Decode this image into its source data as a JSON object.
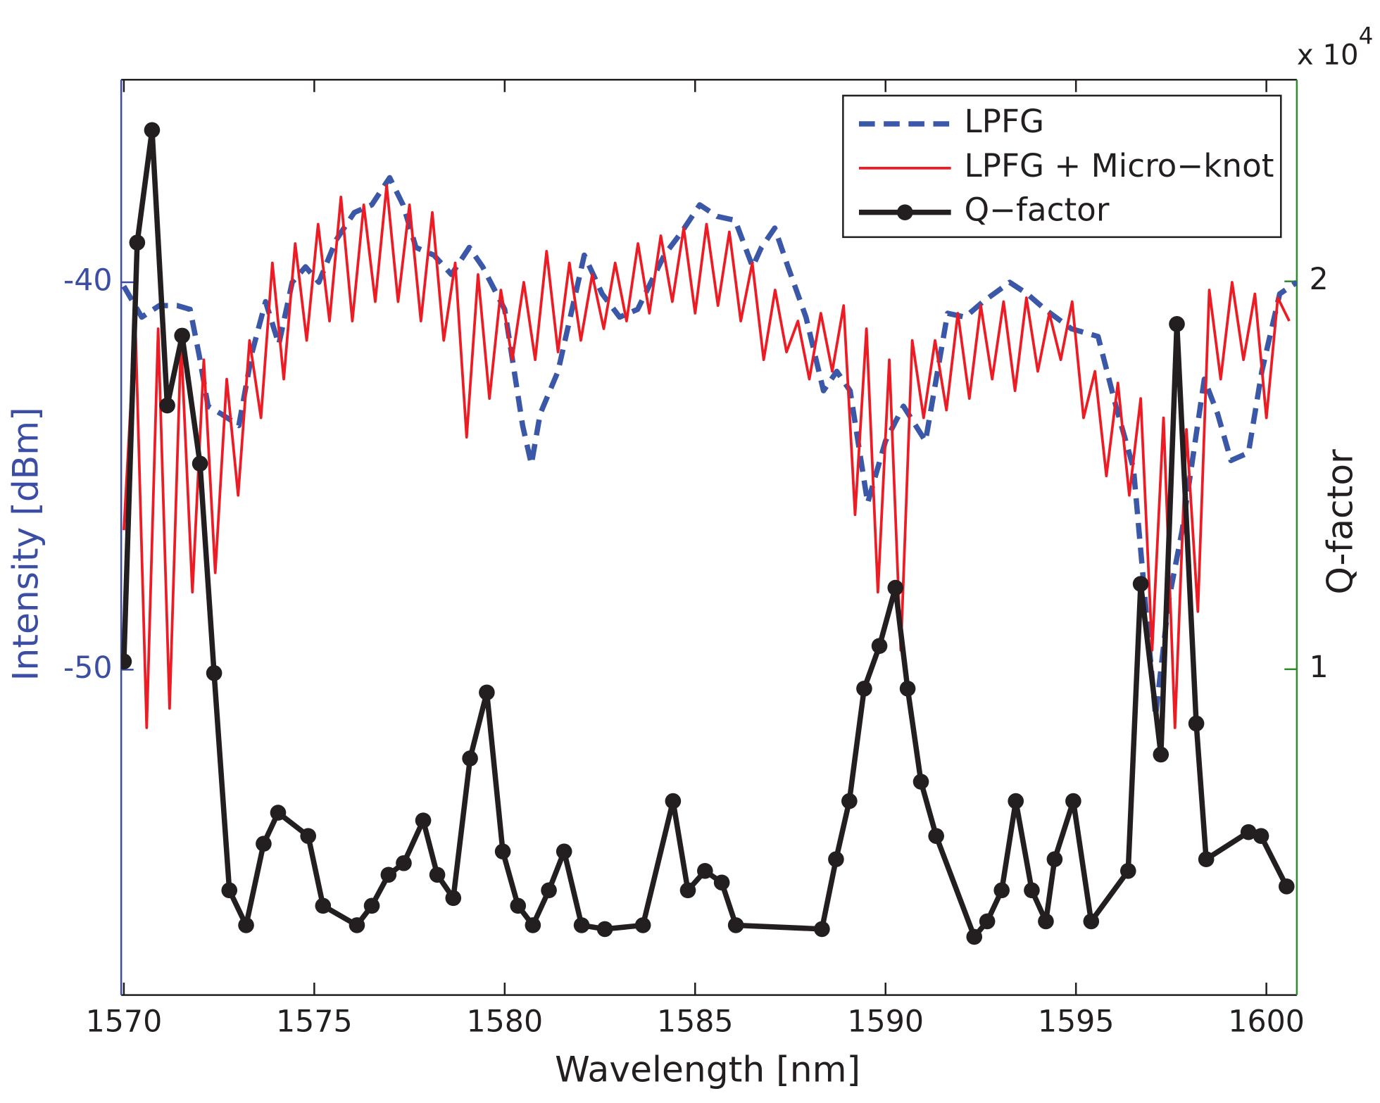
{
  "chart_data": {
    "type": "line",
    "xlabel": "Wavelength [nm]",
    "ylabel": "Intensity [dBm]",
    "y2label": "Q-factor",
    "y2_scale": {
      "base": "x 10",
      "exponent": "4"
    },
    "xlim": [
      1569.93,
      1600.8
    ],
    "xticks": [
      1570,
      1575,
      1580,
      1585,
      1590,
      1595,
      1600
    ],
    "ylim": [
      -58.4,
      -34.77
    ],
    "yticks": [
      -50,
      -40
    ],
    "y2lim": [
      0.16,
      2.52
    ],
    "y2ticks": [
      1,
      2
    ],
    "left_axis_color": "#3b4ea3",
    "right_axis_color": "#2e8b2e",
    "legend": "upper right",
    "grid": false,
    "series": [
      {
        "name": "LPFG",
        "color": "#3b57a8",
        "line_style": "dashed",
        "width": 6,
        "x": [
          1570.0,
          1570.47,
          1570.93,
          1571.4,
          1571.74,
          1571.98,
          1572.21,
          1572.56,
          1573.02,
          1573.37,
          1573.72,
          1574.07,
          1574.42,
          1574.77,
          1575.12,
          1575.58,
          1576.05,
          1576.51,
          1576.98,
          1577.33,
          1577.67,
          1578.14,
          1578.6,
          1579.07,
          1579.42,
          1580.0,
          1580.47,
          1580.7,
          1580.93,
          1581.4,
          1582.09,
          1582.56,
          1583.02,
          1583.49,
          1584.19,
          1584.65,
          1585.12,
          1585.58,
          1586.05,
          1586.51,
          1586.74,
          1587.09,
          1587.44,
          1587.91,
          1588.37,
          1588.72,
          1589.07,
          1589.53,
          1590.0,
          1590.47,
          1591.05,
          1591.63,
          1592.09,
          1592.56,
          1593.26,
          1593.72,
          1594.19,
          1594.88,
          1595.58,
          1596.05,
          1596.51,
          1596.86,
          1597.09,
          1597.44,
          1597.79,
          1598.37,
          1598.72,
          1599.07,
          1599.53,
          1599.88,
          1600.35,
          1600.8
        ],
        "values": [
          -40.1,
          -40.9,
          -40.6,
          -40.6,
          -40.7,
          -41.9,
          -43.2,
          -43.4,
          -43.7,
          -41.8,
          -40.5,
          -41.6,
          -40.0,
          -39.6,
          -40.0,
          -38.9,
          -38.2,
          -38.0,
          -37.3,
          -38.0,
          -39.1,
          -39.3,
          -39.8,
          -39.1,
          -39.6,
          -40.7,
          -43.7,
          -44.7,
          -43.4,
          -42.3,
          -39.3,
          -40.3,
          -40.9,
          -40.7,
          -39.3,
          -38.7,
          -38.0,
          -38.3,
          -38.4,
          -39.6,
          -39.1,
          -38.6,
          -39.6,
          -40.9,
          -42.8,
          -42.3,
          -42.8,
          -45.7,
          -44.1,
          -43.2,
          -44.1,
          -40.8,
          -40.9,
          -40.5,
          -40.0,
          -40.3,
          -40.7,
          -41.2,
          -41.4,
          -43.2,
          -44.8,
          -48.7,
          -51.2,
          -48.2,
          -46.4,
          -42.5,
          -43.4,
          -44.6,
          -44.4,
          -42.3,
          -40.3,
          -40.0
        ]
      },
      {
        "name": "LPFG + Micro−knot",
        "color": "#ed1c24",
        "line_style": "solid",
        "width": 3,
        "x": [
          1570.0,
          1570.3,
          1570.6,
          1570.9,
          1571.2,
          1571.5,
          1571.8,
          1572.1,
          1572.4,
          1572.7,
          1573.0,
          1573.3,
          1573.6,
          1573.9,
          1574.2,
          1574.5,
          1574.8,
          1575.1,
          1575.4,
          1575.7,
          1576.0,
          1576.3,
          1576.6,
          1576.9,
          1577.2,
          1577.5,
          1577.8,
          1578.1,
          1578.4,
          1578.7,
          1579.0,
          1579.3,
          1579.6,
          1579.9,
          1580.2,
          1580.5,
          1580.8,
          1581.1,
          1581.4,
          1581.7,
          1582.0,
          1582.3,
          1582.6,
          1582.9,
          1583.2,
          1583.5,
          1583.8,
          1584.1,
          1584.4,
          1584.7,
          1585.0,
          1585.3,
          1585.6,
          1585.9,
          1586.2,
          1586.5,
          1586.8,
          1587.1,
          1587.4,
          1587.7,
          1588.0,
          1588.3,
          1588.6,
          1588.9,
          1589.2,
          1589.5,
          1589.8,
          1590.1,
          1590.4,
          1590.7,
          1591.0,
          1591.3,
          1591.6,
          1591.9,
          1592.2,
          1592.5,
          1592.8,
          1593.1,
          1593.4,
          1593.7,
          1594.0,
          1594.3,
          1594.6,
          1594.9,
          1595.2,
          1595.5,
          1595.8,
          1596.1,
          1596.4,
          1596.7,
          1597.0,
          1597.3,
          1597.6,
          1597.9,
          1598.2,
          1598.5,
          1598.8,
          1599.1,
          1599.4,
          1599.7,
          1600.0,
          1600.3,
          1600.6
        ],
        "values": [
          -46.4,
          -41.0,
          -51.5,
          -41.2,
          -51.0,
          -41.5,
          -48.0,
          -42.0,
          -47.5,
          -42.5,
          -45.5,
          -41.5,
          -43.5,
          -39.5,
          -42.5,
          -39.0,
          -41.5,
          -38.5,
          -41.0,
          -37.8,
          -41.0,
          -38.0,
          -40.5,
          -37.5,
          -40.5,
          -38.0,
          -41.0,
          -38.2,
          -41.5,
          -39.5,
          -44.0,
          -39.8,
          -43.0,
          -40.2,
          -42.0,
          -40.0,
          -42.0,
          -39.2,
          -41.8,
          -39.5,
          -41.5,
          -39.8,
          -41.2,
          -39.5,
          -41.0,
          -39.0,
          -40.8,
          -38.8,
          -40.5,
          -38.6,
          -40.8,
          -38.5,
          -40.6,
          -38.7,
          -41.0,
          -39.5,
          -42.0,
          -40.2,
          -41.8,
          -41.0,
          -42.5,
          -40.8,
          -42.3,
          -40.6,
          -46.0,
          -41.2,
          -48.0,
          -42.0,
          -49.5,
          -41.5,
          -43.5,
          -41.5,
          -43.3,
          -40.8,
          -43.0,
          -40.6,
          -42.5,
          -40.5,
          -42.8,
          -40.4,
          -42.3,
          -40.8,
          -42.0,
          -40.5,
          -43.5,
          -42.3,
          -45.0,
          -42.6,
          -45.5,
          -43.0,
          -49.5,
          -43.5,
          -51.5,
          -43.8,
          -48.5,
          -40.2,
          -42.5,
          -40.0,
          -42.0,
          -40.3,
          -43.5,
          -40.4,
          -41.0
        ]
      },
      {
        "name": "Q−factor",
        "color": "#231f20",
        "line_style": "solid",
        "width": 6,
        "marker": "o",
        "axis": "y2",
        "x": [
          1570.0,
          1570.35,
          1570.74,
          1571.14,
          1571.53,
          1572.0,
          1572.37,
          1572.77,
          1573.21,
          1573.67,
          1574.05,
          1574.84,
          1575.23,
          1576.12,
          1576.51,
          1576.95,
          1577.35,
          1577.86,
          1578.23,
          1578.65,
          1579.09,
          1579.53,
          1579.95,
          1580.35,
          1580.74,
          1581.16,
          1581.56,
          1582.02,
          1582.63,
          1583.63,
          1584.42,
          1584.81,
          1585.26,
          1585.7,
          1586.07,
          1588.33,
          1588.7,
          1589.05,
          1589.44,
          1589.84,
          1590.26,
          1590.58,
          1590.93,
          1591.33,
          1592.33,
          1592.67,
          1593.05,
          1593.42,
          1593.84,
          1594.21,
          1594.44,
          1594.93,
          1595.4,
          1596.37,
          1596.7,
          1597.23,
          1597.65,
          1598.16,
          1598.42,
          1599.53,
          1599.86,
          1600.53
        ],
        "values": [
          1.02,
          2.1,
          2.39,
          1.68,
          1.86,
          1.53,
          0.99,
          0.43,
          0.34,
          0.55,
          0.63,
          0.57,
          0.39,
          0.34,
          0.39,
          0.47,
          0.5,
          0.61,
          0.47,
          0.41,
          0.77,
          0.94,
          0.53,
          0.39,
          0.34,
          0.43,
          0.53,
          0.34,
          0.33,
          0.34,
          0.66,
          0.43,
          0.48,
          0.45,
          0.34,
          0.33,
          0.51,
          0.66,
          0.95,
          1.06,
          1.21,
          0.95,
          0.71,
          0.57,
          0.31,
          0.35,
          0.43,
          0.66,
          0.43,
          0.35,
          0.51,
          0.66,
          0.35,
          0.48,
          1.22,
          0.78,
          1.89,
          0.86,
          0.51,
          0.58,
          0.57,
          0.44
        ]
      }
    ]
  }
}
